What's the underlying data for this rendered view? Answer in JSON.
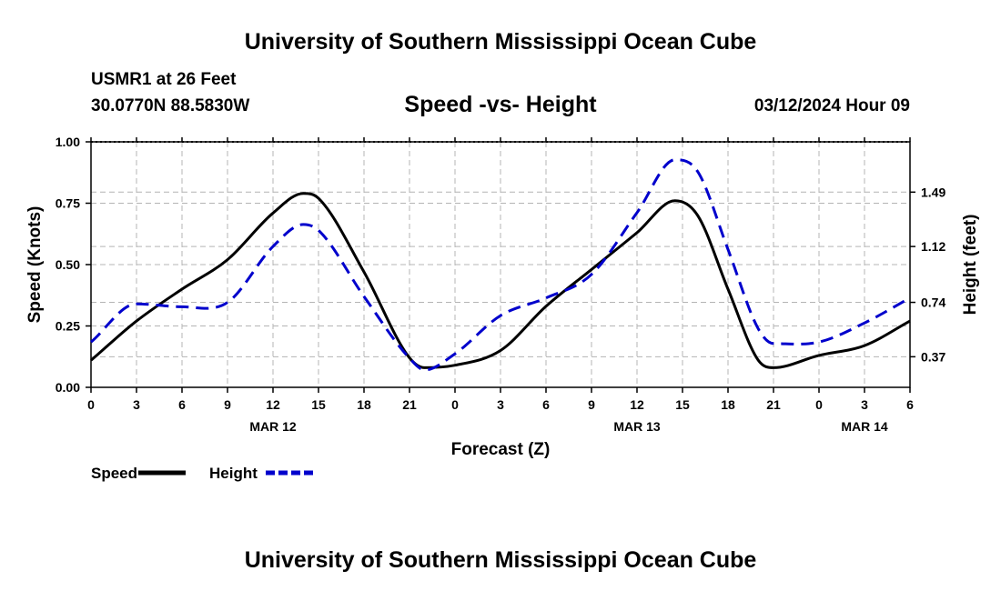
{
  "page": {
    "title_top": "University of Southern Mississippi Ocean Cube",
    "title_bottom": "University of Southern Mississippi Ocean Cube",
    "station": "USMR1 at 26 Feet",
    "coords": "30.0770N  88.5830W",
    "datetime": "03/12/2024 Hour 09"
  },
  "chart_data": {
    "type": "line",
    "title": "Speed -vs- Height",
    "xlabel": "Forecast (Z)",
    "ylabel": "Speed (Knots)",
    "ylabel_right": "Height (feet)",
    "x_range": [
      0,
      54
    ],
    "ylim": [
      0,
      1.0
    ],
    "y2lim": [
      0.162,
      1.832
    ],
    "x_tick_values": [
      0,
      3,
      6,
      9,
      12,
      15,
      18,
      21,
      24,
      27,
      30,
      33,
      36,
      39,
      42,
      45,
      48,
      51,
      54
    ],
    "x_tick_labels": [
      "0",
      "3",
      "6",
      "9",
      "12",
      "15",
      "18",
      "21",
      "0",
      "3",
      "6",
      "9",
      "12",
      "15",
      "18",
      "21",
      "0",
      "3",
      "6"
    ],
    "y_tick_values": [
      0,
      0.25,
      0.5,
      0.75,
      1.0
    ],
    "y_tick_labels": [
      "0.00",
      "0.25",
      "0.50",
      "0.75",
      "1.00"
    ],
    "y2_tick_values": [
      0.37,
      0.74,
      1.12,
      1.49
    ],
    "y2_tick_labels": [
      "0.37",
      "0.74",
      "1.12",
      "1.49"
    ],
    "date_labels": [
      {
        "x": 12,
        "label": "MAR 12"
      },
      {
        "x": 36,
        "label": "MAR 13"
      },
      {
        "x": 51,
        "label": "MAR 14"
      }
    ],
    "grid": true,
    "series": [
      {
        "name": "Speed",
        "axis": "left",
        "color": "#000000",
        "dash": "solid",
        "x": [
          0,
          3,
          6,
          9,
          12,
          14,
          15,
          18,
          21,
          22,
          24,
          27,
          30,
          33,
          36,
          38.5,
          40,
          42,
          44,
          45,
          48,
          51,
          54
        ],
        "y": [
          0.11,
          0.27,
          0.4,
          0.52,
          0.71,
          0.79,
          0.77,
          0.47,
          0.12,
          0.08,
          0.09,
          0.15,
          0.33,
          0.48,
          0.63,
          0.76,
          0.7,
          0.4,
          0.11,
          0.08,
          0.13,
          0.17,
          0.27
        ]
      },
      {
        "name": "Height",
        "axis": "right",
        "color": "#0000cc",
        "dash": "dashed",
        "x": [
          0,
          3,
          6,
          9,
          12,
          14,
          15,
          18,
          21,
          22,
          24,
          27,
          30,
          33,
          36,
          38.5,
          40,
          42,
          44,
          45,
          48,
          51,
          54
        ],
        "y": [
          0.47,
          0.73,
          0.71,
          0.74,
          1.12,
          1.27,
          1.23,
          0.78,
          0.36,
          0.28,
          0.39,
          0.65,
          0.77,
          0.93,
          1.35,
          1.71,
          1.63,
          1.1,
          0.56,
          0.46,
          0.47,
          0.6,
          0.77
        ]
      }
    ],
    "legend": [
      {
        "label": "Speed",
        "color": "#000000",
        "dash": "solid"
      },
      {
        "label": "Height",
        "color": "#0000cc",
        "dash": "dashed"
      }
    ],
    "legend_position": "bottom-left"
  }
}
